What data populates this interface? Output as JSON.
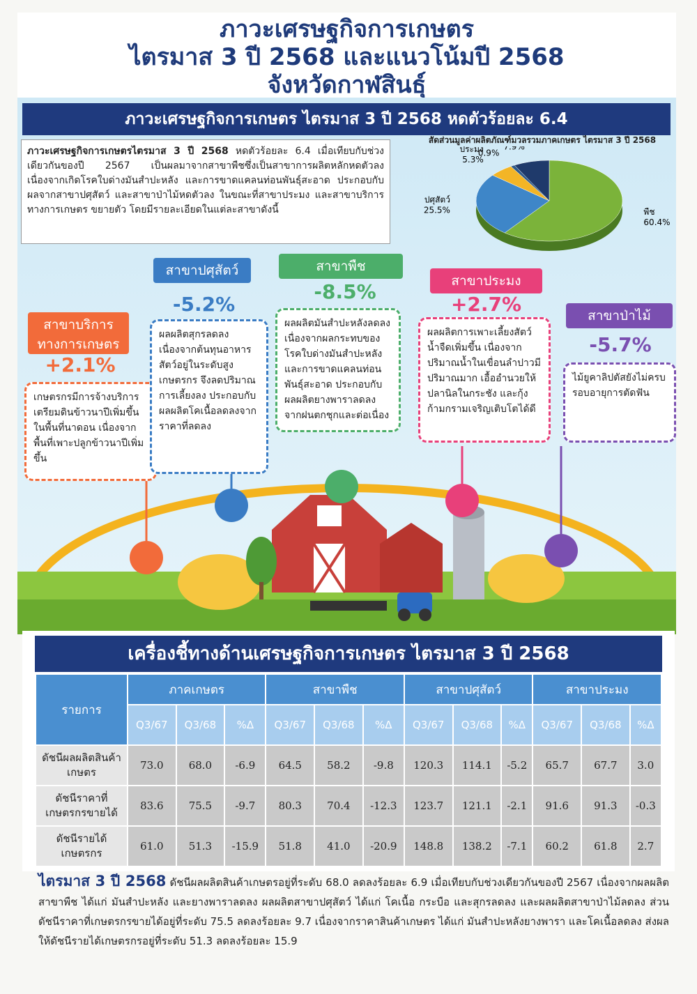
{
  "header": {
    "title_lines": [
      "ภาวะเศรษฐกิจการเกษตร",
      "ไตรมาส 3 ปี 2568 และแนวโน้มปี 2568",
      "จังหวัดกาฬสินธุ์"
    ]
  },
  "banner": "ภาวะเศรษฐกิจการเกษตร ไตรมาส 3 ปี 2568 หดตัวร้อยละ 6.4",
  "intro": {
    "lead": "ภาวะเศรษฐกิจการเกษตรไตรมาส 3 ปี 2568",
    "text": " หดตัวร้อยละ 6.4 เมื่อเทียบกับช่วงเดียวกันของปี 2567 เป็นผลมาจากสาขาพืชซึ่งเป็นสาขาการผลิตหลักหดตัวลง เนื่องจากเกิดโรคใบด่างมันสำปะหลัง และการขาดแคลนท่อนพันธุ์สะอาด ประกอบกับผลจากสาขาปศุสัตว์ และสาขาป่าไม้หดตัวลง ในขณะที่สาขาประมง และสาขาบริการทางการเกษตร ขยายตัว โดยมีรายละเอียดในแต่ละสาขาดังนี้"
  },
  "pie": {
    "type": "pie",
    "title": "สัดส่วนมูลค่าผลิตภัณฑ์มวลรวมภาคเกษตร ไตรมาส 3 ปี 2568",
    "categories": [
      "พืช",
      "ปศุสัตว์",
      "ประมง",
      "ป่าไม้",
      "บริการฯ"
    ],
    "values": [
      60.4,
      25.5,
      5.3,
      0.9,
      7.9
    ],
    "value_labels": [
      "60.4%",
      "25.5%",
      "5.3%",
      "0.9%",
      "7.9%"
    ],
    "colors": [
      "#7bb33a",
      "#3e86c8",
      "#f3b526",
      "#2d5a8c",
      "#1f3a6b"
    ]
  },
  "branches": [
    {
      "title": "สาขาบริการทางการเกษตร",
      "change": "+2.1%",
      "text": "เกษตรกรมีการจ้างบริการเตรียมดินข้าวนาปีเพิ่มขึ้นในพื้นที่นาดอน เนื่องจากพื้นที่เพาะปลูกข้าวนาปีเพิ่มขึ้น"
    },
    {
      "title": "สาขาปศุสัตว์",
      "change": "-5.2%",
      "text": "ผลผลิตสุกรลดลง เนื่องจากต้นทุนอาหารสัตว์อยู่ในระดับสูง เกษตรกร จึงลดปริมาณการเลี้ยงลง ประกอบกับผลผลิตโคเนื้อลดลงจากราคาที่ลดลง"
    },
    {
      "title": "สาขาพืช",
      "change": "-8.5%",
      "text": "ผลผลิตมันสำปะหลังลดลง เนื่องจากผลกระทบของโรคใบด่างมันสำปะหลัง และการขาดแคลนท่อนพันธุ์สะอาด ประกอบกับผลผลิตยางพาราลดลง จากฝนตกชุกและต่อเนื่อง"
    },
    {
      "title": "สาขาประมง",
      "change": "+2.7%",
      "text": "ผลผลิตการเพาะเลี้ยงสัตว์น้ำจืดเพิ่มขึ้น เนื่องจากปริมาณน้ำในเขื่อนลำปาวมีปริมาณมาก เอื้ออำนวยให้ปลานิลในกระชัง และกุ้งก้ามกรามเจริญเติบโตได้ดี"
    },
    {
      "title": "สาขาป่าไม้",
      "change": "-5.7%",
      "text": "ไม้ยูคาลิปตัสยังไม่ครบรอบอายุการตัดฟัน"
    }
  ],
  "table": {
    "title": "เครื่องชี้ทางด้านเศรษฐกิจการเกษตร ไตรมาส 3 ปี 2568",
    "item_header": "รายการ",
    "groups": [
      "ภาคเกษตร",
      "สาขาพืช",
      "สาขาปศุสัตว์",
      "สาขาประมง"
    ],
    "sub_headers": [
      "Q3/67",
      "Q3/68",
      "%Δ"
    ],
    "rows": [
      [
        "ดัชนีผลผลิตสินค้าเกษตร",
        "73.0",
        "68.0",
        "-6.9",
        "64.5",
        "58.2",
        "-9.8",
        "120.3",
        "114.1",
        "-5.2",
        "65.7",
        "67.7",
        "3.0"
      ],
      [
        "ดัชนีราคาที่เกษตรกรขายได้",
        "83.6",
        "75.5",
        "-9.7",
        "80.3",
        "70.4",
        "-12.3",
        "123.7",
        "121.1",
        "-2.1",
        "91.6",
        "91.3",
        "-0.3"
      ],
      [
        "ดัชนีรายได้เกษตรกร",
        "61.0",
        "51.3",
        "-15.9",
        "51.8",
        "41.0",
        "-20.9",
        "148.8",
        "138.2",
        "-7.1",
        "60.2",
        "61.8",
        "2.7"
      ]
    ]
  },
  "footer": {
    "lead": "ไตรมาส 3 ปี 2568",
    "text": " ดัชนีผลผลิตสินค้าเกษตรอยู่ที่ระดับ 68.0 ลดลงร้อยละ 6.9 เมื่อเทียบกับช่วงเดียวกันของปี 2567 เนื่องจากผลผลิตสาขาพืช ได้แก่ มันสำปะหลัง และยางพาราลดลง ผลผลิตสาขาปศุสัตว์ ได้แก่ โคเนื้อ กระบือ และสุกรลดลง และผลผลิตสาขาป่าไม้ลดลง ส่วนดัชนีราคาที่เกษตรกรขายได้อยู่ที่ระดับ 75.5 ลดลงร้อยละ 9.7 เนื่องจากราคาสินค้าเกษตร ได้แก่ มันสำปะหลังยางพารา และโคเนื้อลดลง ส่งผลให้ดัชนีรายได้เกษตรกรอยู่ที่ระดับ 51.3 ลดลงร้อยละ 15.9"
  }
}
